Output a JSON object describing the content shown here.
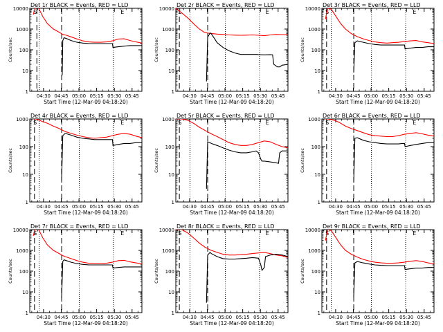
{
  "common": {
    "ylabel": "Counts/sec",
    "xlabel": "Start Time (12-Mar-09 04:18:20)",
    "x_ticks": [
      "04:30",
      "04:45",
      "05:00",
      "05:15",
      "05:30",
      "05:45"
    ],
    "y_ticks": [
      "1",
      "10",
      "100",
      "1000",
      "10000"
    ],
    "marker_start": "S",
    "marker_end": "E",
    "x_unit": "minutes after 04:18:20",
    "x_range": [
      0,
      95
    ],
    "y_log_range": [
      1,
      10000
    ],
    "colors": {
      "events": "#000000",
      "lld": "#ff0000"
    }
  },
  "chart_data": [
    {
      "type": "line",
      "title": "Det 1r BLACK = Events, RED = LLD",
      "ymax": 10000,
      "ylog": true,
      "vlines_dotted": [
        8,
        42,
        71
      ],
      "vlines_dashed": [
        6,
        27
      ],
      "marker_S": 3,
      "marker_E": 77,
      "series": [
        {
          "name": "LLD",
          "color": "#ff0000",
          "x": [
            3,
            5,
            8,
            11,
            15,
            20,
            25,
            28,
            31,
            35,
            40,
            45,
            50,
            55,
            60,
            65,
            70,
            75,
            80,
            85,
            90,
            95
          ],
          "y": [
            5000,
            14000,
            9000,
            4000,
            1800,
            1000,
            700,
            550,
            500,
            420,
            330,
            270,
            240,
            230,
            230,
            240,
            270,
            330,
            340,
            280,
            240,
            210
          ]
        },
        {
          "name": "Events",
          "color": "#000000",
          "x": [
            27.5,
            28,
            29,
            31,
            35,
            40,
            45,
            50,
            55,
            60,
            65,
            68,
            70,
            70.5,
            75,
            80,
            85,
            90,
            95
          ],
          "y": [
            6,
            280,
            380,
            350,
            280,
            230,
            210,
            200,
            200,
            200,
            200,
            200,
            200,
            130,
            140,
            150,
            160,
            160,
            160
          ]
        }
      ]
    },
    {
      "type": "line",
      "title": "Det 2r BLACK = Events, RED = LLD",
      "ymax": 10000,
      "ylog": true,
      "vlines_dotted": [
        12,
        42,
        71
      ],
      "vlines_dashed": [
        3,
        27
      ],
      "marker_S": 2,
      "marker_E": 76,
      "series": [
        {
          "name": "LLD",
          "color": "#ff0000",
          "x": [
            0,
            5,
            10,
            15,
            20,
            24,
            27,
            30,
            35,
            40,
            45,
            50,
            55,
            60,
            65,
            70,
            75,
            80,
            85,
            90,
            95
          ],
          "y": [
            10000,
            6000,
            3500,
            1800,
            1000,
            700,
            640,
            610,
            570,
            550,
            520,
            510,
            500,
            510,
            520,
            500,
            480,
            520,
            550,
            540,
            540
          ]
        },
        {
          "name": "Events",
          "color": "#000000",
          "x": [
            26,
            27,
            29,
            30,
            35,
            40,
            45,
            50,
            55,
            60,
            65,
            68,
            69,
            70,
            75,
            80,
            82,
            83,
            86,
            88,
            90,
            95
          ],
          "y": [
            3,
            400,
            650,
            600,
            220,
            130,
            90,
            70,
            60,
            60,
            60,
            60,
            60,
            58,
            57,
            58,
            57,
            20,
            15,
            15,
            18,
            20
          ]
        }
      ]
    },
    {
      "type": "line",
      "title": "Det 3r BLACK = Events, RED = LLD",
      "ymax": 10000,
      "ylog": true,
      "vlines_dotted": [
        8,
        42,
        71
      ],
      "vlines_dashed": [
        4,
        27
      ],
      "marker_S": 3,
      "marker_E": 77,
      "series": [
        {
          "name": "LLD",
          "color": "#ff0000",
          "x": [
            3,
            5,
            8,
            12,
            16,
            20,
            25,
            30,
            35,
            40,
            45,
            50,
            55,
            60,
            65,
            70,
            75,
            80,
            85,
            90,
            95
          ],
          "y": [
            3000,
            10000,
            9000,
            4000,
            1800,
            1000,
            600,
            430,
            340,
            280,
            240,
            220,
            210,
            220,
            230,
            250,
            270,
            280,
            240,
            220,
            200
          ]
        },
        {
          "name": "Events",
          "color": "#000000",
          "x": [
            27,
            28,
            30,
            35,
            40,
            45,
            50,
            55,
            60,
            65,
            68,
            70,
            70.5,
            75,
            80,
            85,
            90,
            95
          ],
          "y": [
            8,
            220,
            270,
            230,
            200,
            180,
            170,
            170,
            170,
            170,
            170,
            170,
            110,
            120,
            130,
            130,
            140,
            140
          ]
        }
      ]
    },
    {
      "type": "line",
      "title": "Det 4r BLACK = Events, RED = LLD",
      "ymax": 1000,
      "ylog": true,
      "vlines_dotted": [
        8,
        42,
        71
      ],
      "vlines_dashed": [
        4,
        27
      ],
      "marker_S": 3,
      "marker_E": 77,
      "series": [
        {
          "name": "LLD",
          "color": "#ff0000",
          "x": [
            3,
            5,
            8,
            11,
            15,
            20,
            25,
            30,
            35,
            40,
            45,
            50,
            55,
            60,
            65,
            70,
            75,
            80,
            85,
            90,
            95
          ],
          "y": [
            1000,
            1000,
            900,
            800,
            700,
            550,
            450,
            350,
            300,
            260,
            230,
            210,
            200,
            210,
            220,
            250,
            280,
            300,
            280,
            240,
            210
          ]
        },
        {
          "name": "Events",
          "color": "#000000",
          "x": [
            27,
            28,
            30,
            35,
            40,
            45,
            50,
            55,
            60,
            65,
            68,
            70,
            70.5,
            75,
            80,
            85,
            90,
            95
          ],
          "y": [
            6,
            250,
            300,
            260,
            220,
            200,
            190,
            180,
            180,
            180,
            180,
            180,
            110,
            120,
            130,
            130,
            140,
            140
          ]
        }
      ]
    },
    {
      "type": "line",
      "title": "Det 5r BLACK = Events, RED = LLD",
      "ymax": 1000,
      "ylog": true,
      "vlines_dotted": [
        12,
        42,
        71
      ],
      "vlines_dashed": [
        3,
        27
      ],
      "marker_S": 2,
      "marker_E": 76,
      "series": [
        {
          "name": "LLD",
          "color": "#ff0000",
          "x": [
            0,
            5,
            10,
            15,
            20,
            25,
            30,
            35,
            40,
            45,
            50,
            55,
            60,
            65,
            70,
            75,
            80,
            85,
            90,
            95
          ],
          "y": [
            1000,
            1000,
            900,
            700,
            500,
            380,
            290,
            230,
            180,
            140,
            120,
            110,
            110,
            120,
            140,
            160,
            150,
            120,
            100,
            90
          ]
        },
        {
          "name": "Events",
          "color": "#000000",
          "x": [
            26,
            27,
            29,
            30,
            35,
            40,
            45,
            50,
            55,
            60,
            65,
            68,
            70,
            72,
            73,
            75,
            80,
            85,
            87,
            88,
            90,
            95
          ],
          "y": [
            3,
            150,
            140,
            130,
            110,
            90,
            75,
            65,
            60,
            60,
            65,
            70,
            60,
            35,
            30,
            30,
            28,
            26,
            25,
            60,
            70,
            70
          ]
        }
      ]
    },
    {
      "type": "line",
      "title": "Det 6r BLACK = Events, RED = LLD",
      "ymax": 1000,
      "ylog": true,
      "vlines_dotted": [
        8,
        42,
        71
      ],
      "vlines_dashed": [
        4,
        27
      ],
      "marker_S": 3,
      "marker_E": 77,
      "series": [
        {
          "name": "LLD",
          "color": "#ff0000",
          "x": [
            3,
            5,
            8,
            12,
            16,
            20,
            25,
            30,
            35,
            40,
            45,
            50,
            55,
            60,
            65,
            70,
            75,
            80,
            85,
            90,
            95
          ],
          "y": [
            1000,
            1000,
            950,
            850,
            700,
            550,
            450,
            380,
            320,
            270,
            250,
            240,
            230,
            230,
            250,
            280,
            300,
            320,
            290,
            260,
            240
          ]
        },
        {
          "name": "Events",
          "color": "#000000",
          "x": [
            27,
            28,
            30,
            35,
            40,
            45,
            50,
            55,
            60,
            65,
            68,
            70,
            70.5,
            75,
            80,
            85,
            90,
            95
          ],
          "y": [
            5,
            200,
            210,
            170,
            150,
            140,
            130,
            125,
            125,
            125,
            130,
            130,
            100,
            110,
            120,
            130,
            140,
            140
          ]
        }
      ]
    },
    {
      "type": "line",
      "title": "Det 7r BLACK = Events, RED = LLD",
      "ymax": 10000,
      "ylog": true,
      "vlines_dotted": [
        8,
        42,
        71
      ],
      "vlines_dashed": [
        4,
        27
      ],
      "marker_S": 3,
      "marker_E": 77,
      "series": [
        {
          "name": "LLD",
          "color": "#ff0000",
          "x": [
            3,
            5,
            8,
            11,
            15,
            20,
            25,
            28,
            31,
            35,
            40,
            45,
            50,
            55,
            60,
            65,
            70,
            75,
            80,
            85,
            90,
            95
          ],
          "y": [
            5000,
            14000,
            9000,
            4000,
            1800,
            1000,
            700,
            560,
            480,
            400,
            320,
            270,
            240,
            230,
            230,
            240,
            270,
            320,
            330,
            280,
            250,
            220
          ]
        },
        {
          "name": "Events",
          "color": "#000000",
          "x": [
            27,
            28,
            29,
            31,
            35,
            40,
            45,
            50,
            55,
            60,
            65,
            68,
            70,
            70.5,
            75,
            80,
            85,
            90,
            95
          ],
          "y": [
            5,
            290,
            350,
            320,
            270,
            230,
            210,
            200,
            200,
            200,
            200,
            200,
            200,
            140,
            150,
            160,
            160,
            160,
            160
          ]
        }
      ]
    },
    {
      "type": "line",
      "title": "Det 8r BLACK = Events, RED = LLD",
      "ymax": 10000,
      "ylog": true,
      "vlines_dotted": [
        12,
        42,
        71
      ],
      "vlines_dashed": [
        3,
        27
      ],
      "marker_S": 2,
      "marker_E": 76,
      "series": [
        {
          "name": "LLD",
          "color": "#ff0000",
          "x": [
            0,
            5,
            10,
            15,
            20,
            25,
            30,
            35,
            40,
            45,
            50,
            55,
            60,
            65,
            70,
            75,
            80,
            85,
            90,
            95
          ],
          "y": [
            10000,
            10000,
            7000,
            4000,
            2200,
            1400,
            1000,
            800,
            650,
            600,
            600,
            620,
            650,
            700,
            750,
            800,
            700,
            600,
            550,
            450
          ]
        },
        {
          "name": "Events",
          "color": "#000000",
          "x": [
            26,
            27,
            29,
            30,
            35,
            40,
            45,
            50,
            55,
            60,
            65,
            70,
            72,
            73,
            75,
            76,
            80,
            85,
            90,
            95
          ],
          "y": [
            3,
            600,
            800,
            700,
            500,
            400,
            380,
            380,
            400,
            420,
            450,
            420,
            200,
            110,
            150,
            500,
            600,
            650,
            600,
            500
          ]
        }
      ]
    },
    {
      "type": "line",
      "title": "Det 9r BLACK = Events, RED = LLD",
      "ymax": 10000,
      "ylog": true,
      "vlines_dotted": [
        8,
        42,
        71
      ],
      "vlines_dashed": [
        4,
        27
      ],
      "marker_S": 3,
      "marker_E": 77,
      "series": [
        {
          "name": "LLD",
          "color": "#ff0000",
          "x": [
            3,
            5,
            8,
            12,
            16,
            20,
            25,
            30,
            35,
            40,
            45,
            50,
            55,
            60,
            65,
            70,
            75,
            80,
            85,
            90,
            95
          ],
          "y": [
            3000,
            10000,
            9000,
            4000,
            1800,
            1000,
            650,
            470,
            370,
            310,
            270,
            250,
            240,
            240,
            250,
            270,
            300,
            320,
            290,
            250,
            220
          ]
        },
        {
          "name": "Events",
          "color": "#000000",
          "x": [
            27,
            28,
            30,
            35,
            40,
            45,
            50,
            55,
            60,
            65,
            68,
            70,
            70.5,
            75,
            80,
            85,
            90,
            95
          ],
          "y": [
            6,
            250,
            290,
            250,
            220,
            200,
            190,
            185,
            185,
            185,
            185,
            185,
            120,
            130,
            140,
            140,
            150,
            150
          ]
        }
      ]
    }
  ]
}
